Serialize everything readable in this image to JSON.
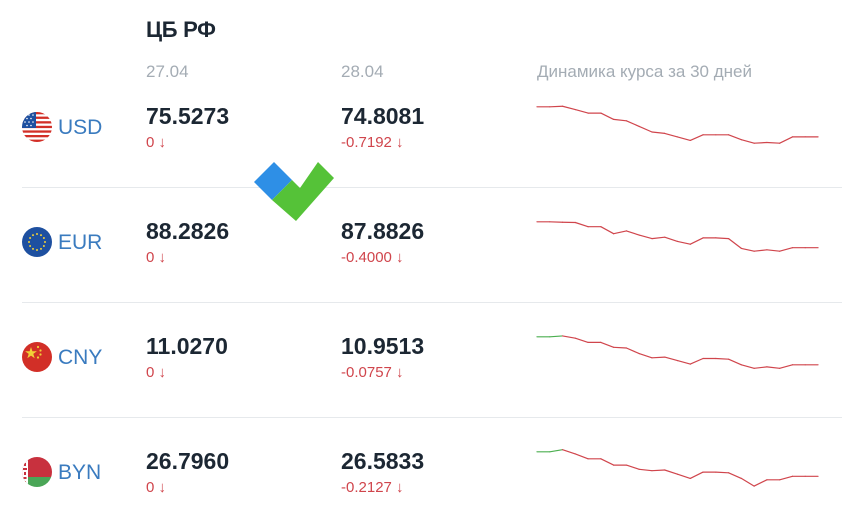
{
  "header": {
    "title": "ЦБ РФ",
    "date1": "27.04",
    "date2": "28.04",
    "dynamics_label": "Динамика курса за 30 дней"
  },
  "colors": {
    "down": "#d0454c",
    "up": "#4caf50",
    "code": "#3a7bbf",
    "value": "#1c2733",
    "muted": "#a4acb4"
  },
  "currencies": [
    {
      "code": "USD",
      "flag": "us-flag-icon",
      "rate1": "75.5273",
      "change1": "0 ↓",
      "rate2": "74.8081",
      "change2": "-0.7192 ↓",
      "trend": [
        {
          "v": 100.0,
          "dir": "down"
        },
        {
          "v": 100.0,
          "dir": "down"
        },
        {
          "v": 100.4,
          "dir": "down"
        },
        {
          "v": 98.0,
          "dir": "down"
        },
        {
          "v": 95.5,
          "dir": "down"
        },
        {
          "v": 95.5,
          "dir": "down"
        },
        {
          "v": 91.0,
          "dir": "down"
        },
        {
          "v": 90.0,
          "dir": "down"
        },
        {
          "v": 86.0,
          "dir": "down"
        },
        {
          "v": 82.0,
          "dir": "down"
        },
        {
          "v": 81.0,
          "dir": "down"
        },
        {
          "v": 78.5,
          "dir": "down"
        },
        {
          "v": 76.0,
          "dir": "down"
        },
        {
          "v": 80.0,
          "dir": "down"
        },
        {
          "v": 80.0,
          "dir": "down"
        },
        {
          "v": 80.0,
          "dir": "down"
        },
        {
          "v": 76.5,
          "dir": "down"
        },
        {
          "v": 74.0,
          "dir": "down"
        },
        {
          "v": 74.5,
          "dir": "down"
        },
        {
          "v": 74.0,
          "dir": "down"
        },
        {
          "v": 78.5,
          "dir": "down"
        },
        {
          "v": 78.5,
          "dir": "down"
        },
        {
          "v": 78.5,
          "dir": "down"
        }
      ]
    },
    {
      "code": "EUR",
      "flag": "eu-flag-icon",
      "rate1": "88.2826",
      "change1": "0 ↓",
      "rate2": "87.8826",
      "change2": "-0.4000 ↓",
      "trend": [
        {
          "v": 100.0,
          "dir": "down"
        },
        {
          "v": 100.0,
          "dir": "down"
        },
        {
          "v": 99.7,
          "dir": "down"
        },
        {
          "v": 99.5,
          "dir": "down"
        },
        {
          "v": 96.5,
          "dir": "down"
        },
        {
          "v": 96.5,
          "dir": "down"
        },
        {
          "v": 91.5,
          "dir": "down"
        },
        {
          "v": 93.5,
          "dir": "down"
        },
        {
          "v": 90.5,
          "dir": "down"
        },
        {
          "v": 88.0,
          "dir": "down"
        },
        {
          "v": 89.0,
          "dir": "down"
        },
        {
          "v": 86.0,
          "dir": "down"
        },
        {
          "v": 84.0,
          "dir": "down"
        },
        {
          "v": 88.5,
          "dir": "down"
        },
        {
          "v": 88.5,
          "dir": "down"
        },
        {
          "v": 88.0,
          "dir": "down"
        },
        {
          "v": 81.0,
          "dir": "down"
        },
        {
          "v": 79.0,
          "dir": "down"
        },
        {
          "v": 80.0,
          "dir": "down"
        },
        {
          "v": 79.0,
          "dir": "down"
        },
        {
          "v": 81.5,
          "dir": "down"
        },
        {
          "v": 81.5,
          "dir": "down"
        },
        {
          "v": 81.5,
          "dir": "down"
        }
      ]
    },
    {
      "code": "CNY",
      "flag": "cn-flag-icon",
      "rate1": "11.0270",
      "change1": "0 ↓",
      "rate2": "10.9513",
      "change2": "-0.0757 ↓",
      "trend": [
        {
          "v": 100.0,
          "dir": "up"
        },
        {
          "v": 100.0,
          "dir": "up"
        },
        {
          "v": 100.6,
          "dir": "down"
        },
        {
          "v": 99.0,
          "dir": "down"
        },
        {
          "v": 96.0,
          "dir": "down"
        },
        {
          "v": 96.0,
          "dir": "down"
        },
        {
          "v": 92.5,
          "dir": "down"
        },
        {
          "v": 92.0,
          "dir": "down"
        },
        {
          "v": 88.0,
          "dir": "down"
        },
        {
          "v": 85.0,
          "dir": "down"
        },
        {
          "v": 85.5,
          "dir": "down"
        },
        {
          "v": 83.0,
          "dir": "down"
        },
        {
          "v": 80.5,
          "dir": "down"
        },
        {
          "v": 84.5,
          "dir": "down"
        },
        {
          "v": 84.5,
          "dir": "down"
        },
        {
          "v": 84.0,
          "dir": "down"
        },
        {
          "v": 80.0,
          "dir": "down"
        },
        {
          "v": 77.5,
          "dir": "down"
        },
        {
          "v": 78.5,
          "dir": "down"
        },
        {
          "v": 77.5,
          "dir": "down"
        },
        {
          "v": 80.0,
          "dir": "down"
        },
        {
          "v": 80.0,
          "dir": "down"
        },
        {
          "v": 80.0,
          "dir": "down"
        }
      ]
    },
    {
      "code": "BYN",
      "flag": "by-flag-icon",
      "rate1": "26.7960",
      "change1": "0 ↓",
      "rate2": "26.5833",
      "change2": "-0.2127 ↓",
      "trend": [
        {
          "v": 100.0,
          "dir": "up"
        },
        {
          "v": 100.0,
          "dir": "up"
        },
        {
          "v": 101.5,
          "dir": "down"
        },
        {
          "v": 98.5,
          "dir": "down"
        },
        {
          "v": 95.0,
          "dir": "down"
        },
        {
          "v": 95.0,
          "dir": "down"
        },
        {
          "v": 90.5,
          "dir": "down"
        },
        {
          "v": 90.5,
          "dir": "down"
        },
        {
          "v": 87.5,
          "dir": "down"
        },
        {
          "v": 86.5,
          "dir": "down"
        },
        {
          "v": 87.0,
          "dir": "down"
        },
        {
          "v": 84.0,
          "dir": "down"
        },
        {
          "v": 81.0,
          "dir": "down"
        },
        {
          "v": 85.5,
          "dir": "down"
        },
        {
          "v": 85.5,
          "dir": "down"
        },
        {
          "v": 85.0,
          "dir": "down"
        },
        {
          "v": 81.0,
          "dir": "down"
        },
        {
          "v": 75.5,
          "dir": "down"
        },
        {
          "v": 80.0,
          "dir": "down"
        },
        {
          "v": 80.0,
          "dir": "down"
        },
        {
          "v": 82.5,
          "dir": "down"
        },
        {
          "v": 82.5,
          "dir": "down"
        },
        {
          "v": 82.5,
          "dir": "down"
        }
      ]
    }
  ]
}
